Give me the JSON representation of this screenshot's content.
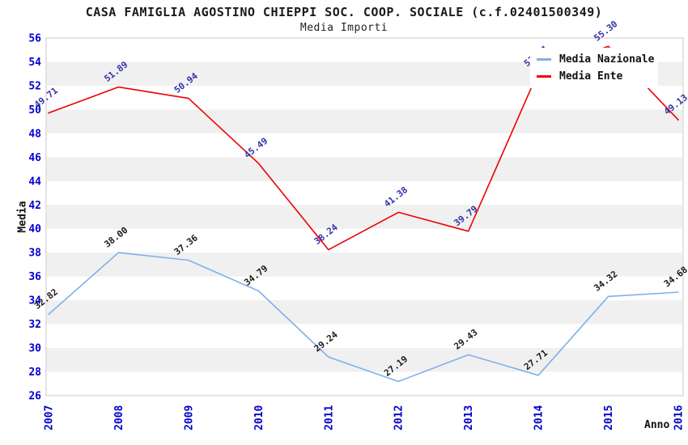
{
  "title": "CASA FAMIGLIA AGOSTINO CHIEPPI SOC. COOP. SOCIALE (c.f.02401500349)",
  "subtitle": "Media Importi",
  "chart_data": {
    "type": "line",
    "x": [
      2007,
      2008,
      2009,
      2010,
      2011,
      2012,
      2013,
      2014,
      2015,
      2016
    ],
    "series": [
      {
        "name": "Media Nazionale",
        "color": "#7db1e8",
        "label_color": "#1a1a1a",
        "values": [
          32.82,
          38.0,
          37.36,
          34.79,
          29.24,
          27.19,
          29.43,
          27.71,
          34.32,
          34.68
        ],
        "value_labels": [
          "32.82",
          "38.00",
          "37.36",
          "34.79",
          "29.24",
          "27.19",
          "29.43",
          "27.71",
          "34.32",
          "34.68"
        ]
      },
      {
        "name": "Media Ente",
        "color": "#ee0000",
        "label_color": "#3333a8",
        "values": [
          49.71,
          51.89,
          50.94,
          45.49,
          38.24,
          41.38,
          39.79,
          53.17,
          55.3,
          49.13
        ],
        "value_labels": [
          "49.71",
          "51.89",
          "50.94",
          "45.49",
          "38.24",
          "41.38",
          "39.79",
          "53.17",
          "55.30",
          "49.13"
        ]
      }
    ],
    "xlabel": "Anno",
    "ylabel": "Media",
    "ylim": [
      26,
      56
    ],
    "ytick_step": 2,
    "yticks": [
      26,
      28,
      30,
      32,
      34,
      36,
      38,
      40,
      42,
      44,
      46,
      48,
      50,
      52,
      54,
      56
    ],
    "grid": "striped-bands",
    "stripe_color": "#f0f0f0",
    "plot_border_color": "#c8c8c8",
    "axis_tick_color": "#0000cc",
    "legend_position": "top-right-inside"
  }
}
